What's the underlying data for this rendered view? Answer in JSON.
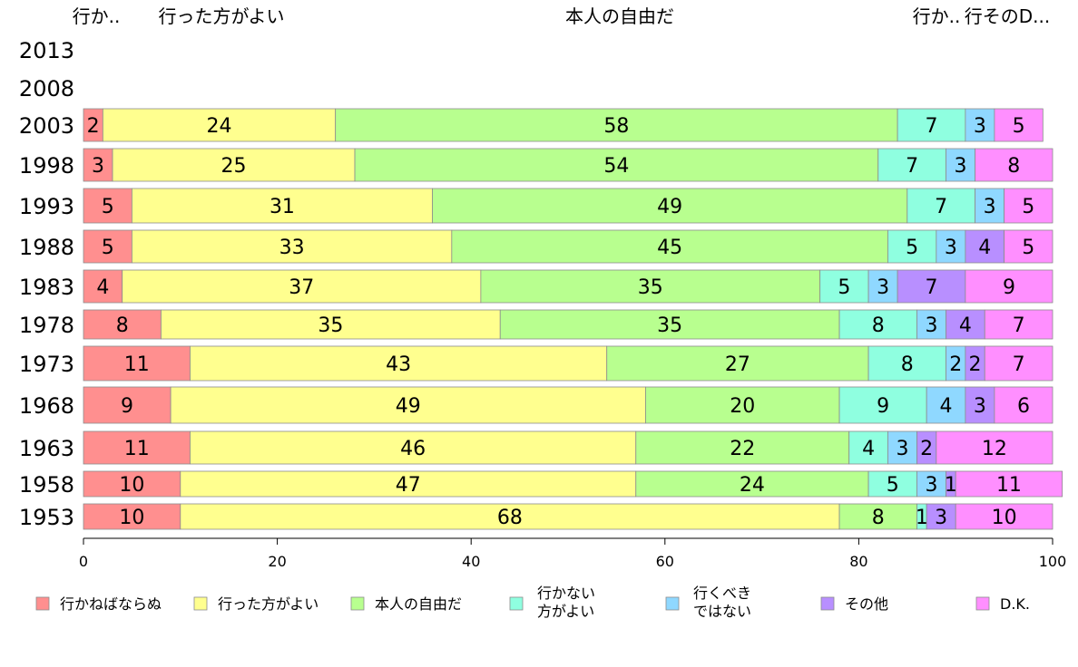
{
  "chart_data": {
    "type": "bar",
    "orientation": "horizontal",
    "stacked": true,
    "categories": [
      "2013",
      "2008",
      "2003",
      "1998",
      "1993",
      "1988",
      "1983",
      "1978",
      "1973",
      "1968",
      "1963",
      "1958",
      "1953"
    ],
    "series": [
      {
        "name": "行かねばならぬ",
        "color": "#ff8f8f",
        "values": [
          null,
          null,
          2,
          3,
          5,
          5,
          4,
          8,
          11,
          9,
          11,
          10,
          10
        ]
      },
      {
        "name": "行った方がよい",
        "color": "#ffff8f",
        "values": [
          null,
          null,
          24,
          25,
          31,
          33,
          37,
          35,
          43,
          49,
          46,
          47,
          68
        ]
      },
      {
        "name": "本人の自由だ",
        "color": "#b8ff8f",
        "values": [
          null,
          null,
          58,
          54,
          49,
          45,
          35,
          35,
          27,
          20,
          22,
          24,
          8
        ]
      },
      {
        "name": "行かない\n方がよい",
        "color": "#8fffe0",
        "values": [
          null,
          null,
          7,
          7,
          7,
          5,
          5,
          8,
          8,
          9,
          4,
          5,
          1
        ]
      },
      {
        "name": "行くべき\nではない",
        "color": "#8fd8ff",
        "values": [
          null,
          null,
          3,
          3,
          3,
          3,
          3,
          3,
          2,
          4,
          3,
          3,
          0
        ]
      },
      {
        "name": "その他",
        "color": "#b88fff",
        "values": [
          null,
          null,
          0,
          0,
          0,
          4,
          7,
          4,
          2,
          3,
          2,
          1,
          3
        ]
      },
      {
        "name": "D.K.",
        "color": "#ff8fff",
        "values": [
          null,
          null,
          5,
          8,
          5,
          5,
          9,
          7,
          7,
          6,
          12,
          11,
          10
        ]
      }
    ],
    "xlim": [
      0,
      100
    ],
    "xticks": [
      0,
      20,
      40,
      60,
      80,
      100
    ],
    "top_labels": [
      "行か..",
      "行った方がよい",
      "本人の自由だ",
      "行か..",
      "行そのD..."
    ],
    "legend_position": "bottom"
  }
}
